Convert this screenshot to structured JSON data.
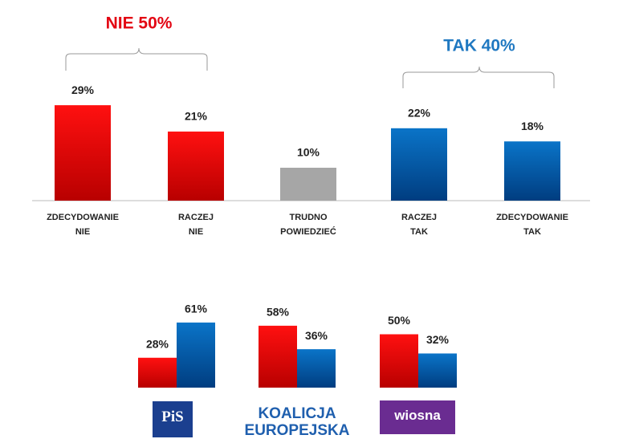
{
  "chart_data": [
    {
      "type": "bar",
      "categories": [
        "ZDECYDOWANIE\nNIE",
        "RACZEJ\nNIE",
        "TRUDNO\nPOWIEDZIEĆ",
        "RACZEJ\nTAK",
        "ZDECYDOWANIE\nTAK"
      ],
      "values": [
        29,
        21,
        10,
        22,
        18
      ],
      "value_labels": [
        "29%",
        "21%",
        "10%",
        "22%",
        "18%"
      ],
      "colors": [
        "#e00000",
        "#e00000",
        "#a6a6a6",
        "#0066b3",
        "#0066b3"
      ],
      "annotations": [
        {
          "text": "NIE 50%",
          "color": "#e30613"
        },
        {
          "text": "TAK 40%",
          "color": "#1f78c1"
        }
      ]
    },
    {
      "type": "grouped_bar",
      "categories": [
        "PiS",
        "KOALICJA\nEUROPEJSKA",
        "wiosna"
      ],
      "series": [
        {
          "color": "#e00000",
          "values": [
            28,
            58,
            50
          ],
          "value_labels": [
            "28%",
            "58%",
            "50%"
          ]
        },
        {
          "color": "#0066b3",
          "values": [
            61,
            36,
            32
          ],
          "value_labels": [
            "61%",
            "36%",
            "32%"
          ]
        }
      ]
    }
  ]
}
